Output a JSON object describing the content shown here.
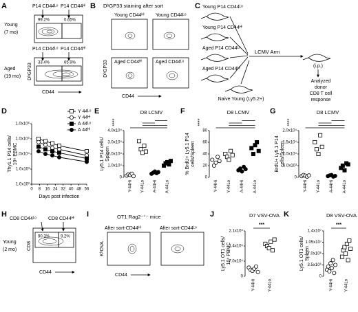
{
  "panels": {
    "A": {
      "letter": "A",
      "rows": [
        {
          "name": "Young",
          "age": "(7 mo)"
        },
        {
          "name": "Aged",
          "age": "(19 mo)"
        }
      ],
      "gates": [
        "P14 CD44ᴸᵒ",
        "P14 CD44ᴴⁱ"
      ],
      "percents": [
        [
          "99.2%",
          "0.65%"
        ],
        [
          "33.4%",
          "65.9%"
        ]
      ],
      "ylabel": "DᵇGP33",
      "xlabel": "CD44"
    },
    "B": {
      "letter": "B",
      "title": "DᵇGP33 staining after sort",
      "plots": [
        "Young CD44ᴴⁱ",
        "Young CD44ᴸᵒ",
        "Aged CD44ᴴⁱ",
        "Aged CD44ᴸᵒ"
      ],
      "ylabel": "DᵇGP33",
      "xlabel": "CD44"
    },
    "C": {
      "letter": "C",
      "donors": [
        "Young P14 CD44ᴸᵒ",
        "Young P14 CD44ᴴⁱ",
        "Aged P14 CD44ᴸᵒ",
        "Aged P14 CD44ᴴⁱ"
      ],
      "infection": "LCMV Arm",
      "route": "(i.p.)",
      "recipient": "Naive Young (Ly5.2+)",
      "readout": [
        "Analyzed",
        "donor",
        "CD8 T cell",
        "response"
      ]
    },
    "H": {
      "letter": "H",
      "row": "Young",
      "age": "(2 mo)",
      "gates": [
        "CD8 CD44ᴸᵒ",
        "CD8 CD44ᴴⁱ"
      ],
      "percents": [
        "90.3%",
        "9.2%"
      ],
      "ylabel": "CD8",
      "xlabel": "CD44"
    },
    "I": {
      "letter": "I",
      "title": "OT1 Rag2⁻ᐟ⁻ mice",
      "plots": [
        "After sort-CD44ᴴⁱ",
        "After sort-CD44ᴸᵒ"
      ],
      "ylabel": "KᵇOVA",
      "xlabel": "CD44"
    }
  },
  "chart_data": [
    {
      "panel": "D",
      "type": "line",
      "xlabel": "Days post infection",
      "ylabel": [
        "Thy1.1 P14 cells/",
        "10⁶ PBMC"
      ],
      "x": [
        7,
        14,
        21,
        28,
        56
      ],
      "xlim": [
        0,
        56
      ],
      "xticks": [
        0,
        8,
        16,
        24,
        32,
        40,
        48,
        56
      ],
      "ylim": [
        100,
        1000000
      ],
      "log_y": true,
      "yticks": [
        {
          "value": 100,
          "label": "1.0x10²"
        },
        {
          "value": 1000,
          "label": "1.0x10³"
        },
        {
          "value": 10000,
          "label": "1.0x10⁴"
        },
        {
          "value": 100000,
          "label": "1.0x10⁵"
        },
        {
          "value": 1000000,
          "label": "1.0x10⁶"
        }
      ],
      "legend": "upper right",
      "series": [
        {
          "name": "Y 44ᴸᵒ",
          "marker": "open-square",
          "color": "#000000",
          "values": [
            100000,
            70000,
            50000,
            35000,
            15000
          ]
        },
        {
          "name": "Y 44ᴴⁱ",
          "marker": "open-circle",
          "color": "#000000",
          "values": [
            60000,
            40000,
            25000,
            20000,
            8000
          ]
        },
        {
          "name": "A 44ᴸᵒ",
          "marker": "filled-square",
          "color": "#000000",
          "values": [
            30000,
            20000,
            15000,
            12000,
            5000
          ]
        },
        {
          "name": "A 44ᴴⁱ",
          "marker": "filled-circle",
          "color": "#000000",
          "values": [
            15000,
            10000,
            8000,
            6000,
            3000
          ]
        }
      ]
    },
    {
      "panel": "E",
      "type": "dot",
      "title": "D8 LCMV",
      "ylabel": [
        "Ly5.1 P14 cells/",
        "Spleen"
      ],
      "significance": "****",
      "categories": [
        "Y-44Hi",
        "Y-44Lo",
        "A-44Hi",
        "A-44Lo"
      ],
      "markers": [
        "open-circle",
        "open-square",
        "filled-circle",
        "filled-square"
      ],
      "ylim": [
        0,
        40000
      ],
      "yticks": [
        0,
        {
          "value": 10000,
          "label": "1.0x10⁴"
        },
        {
          "value": 20000,
          "label": "2.0x10⁴"
        },
        {
          "value": 30000,
          "label": "3.0x10⁴"
        },
        {
          "value": 40000,
          "label": "4.0x10⁴"
        }
      ],
      "values": [
        [
          1500,
          2500,
          2000,
          3000,
          1000
        ],
        [
          31000,
          24000,
          21000,
          27000,
          22000
        ],
        [
          3000,
          4000,
          5000,
          3500,
          4500
        ],
        [
          10000,
          12000,
          13000,
          11000,
          14000
        ]
      ]
    },
    {
      "panel": "F",
      "type": "dot",
      "title": "D8 LCMV",
      "ylabel": [
        "% BrdU+ Ly5.1 P14",
        "cells/Spleen"
      ],
      "significance": "****",
      "categories": [
        "Y-44Hi",
        "Y-44Lo",
        "A-44Hi",
        "A-44Lo"
      ],
      "markers": [
        "open-circle",
        "open-square",
        "filled-circle",
        "filled-square"
      ],
      "ylim": [
        0,
        80
      ],
      "yticks": [
        0,
        20,
        40,
        60,
        80
      ],
      "values": [
        [
          30,
          20,
          25,
          35,
          28
        ],
        [
          40,
          35,
          30,
          45,
          38
        ],
        [
          12,
          15,
          10,
          18,
          14
        ],
        [
          50,
          40,
          55,
          60,
          45
        ]
      ]
    },
    {
      "panel": "G",
      "type": "dot",
      "title": "D8 LCMV",
      "ylabel": [
        "BrdU+ Ly5.1 P14",
        "cells/Spleen"
      ],
      "significance": "****",
      "categories": [
        "Y-44Hi",
        "Y-44Lo",
        "A-44Hi",
        "A-44Lo"
      ],
      "markers": [
        "open-circle",
        "open-square",
        "filled-circle",
        "filled-square"
      ],
      "ylim": [
        0,
        20000
      ],
      "yticks": [
        0,
        {
          "value": 5000,
          "label": "5.0x10³"
        },
        {
          "value": 10000,
          "label": "1.0x10⁴"
        },
        {
          "value": 15000,
          "label": "1.5x10⁴"
        },
        {
          "value": 20000,
          "label": "2.0x10⁴"
        }
      ],
      "values": [
        [
          500,
          1000,
          700,
          300,
          800
        ],
        [
          15000,
          12000,
          10000,
          18000,
          13000
        ],
        [
          500,
          800,
          1000,
          300,
          600
        ],
        [
          4000,
          5000,
          3000,
          6000,
          5500
        ]
      ]
    },
    {
      "panel": "J",
      "type": "dot",
      "title": "D7 VSV-OVA",
      "ylabel": [
        "Ly5.1 OT1 cells/",
        "10⁶ PBMC"
      ],
      "significance": "***",
      "categories": [
        "Y-44Hi",
        "Y-44Lo"
      ],
      "markers": [
        "open-circle",
        "open-square"
      ],
      "ylim": [
        0,
        210000
      ],
      "yticks": [
        0,
        {
          "value": 70000,
          "label": "7.0x10⁴"
        },
        {
          "value": 140000,
          "label": "1.4x10⁵"
        },
        {
          "value": 210000,
          "label": "2.1x10⁵"
        }
      ],
      "values": [
        [
          40000,
          30000,
          25000,
          35000,
          45000,
          20000
        ],
        [
          150000,
          140000,
          130000,
          160000,
          120000,
          170000
        ]
      ]
    },
    {
      "panel": "K",
      "type": "dot",
      "title": "D8 VSV-OVA",
      "ylabel": [
        "Ly5.1 OT1 cells/",
        "Spleen"
      ],
      "significance": "***",
      "categories": [
        "Y-44Hi",
        "Y-44Lo"
      ],
      "markers": [
        "open-circle",
        "open-square"
      ],
      "ylim": [
        0,
        14000000
      ],
      "yticks": [
        0,
        {
          "value": 3500000,
          "label": "3.5x10⁶"
        },
        {
          "value": 7000000,
          "label": "7.0x10⁶"
        },
        {
          "value": 10500000,
          "label": "1.05x10⁷"
        },
        {
          "value": 14000000,
          "label": "1.4x10⁷"
        }
      ],
      "values": [
        [
          2000000,
          3000000,
          1500000,
          4000000,
          2500000,
          5000000,
          1000000,
          3500000
        ],
        [
          6000000,
          8000000,
          9000000,
          7000000,
          10000000,
          5000000,
          11000000,
          8500000
        ]
      ]
    }
  ]
}
